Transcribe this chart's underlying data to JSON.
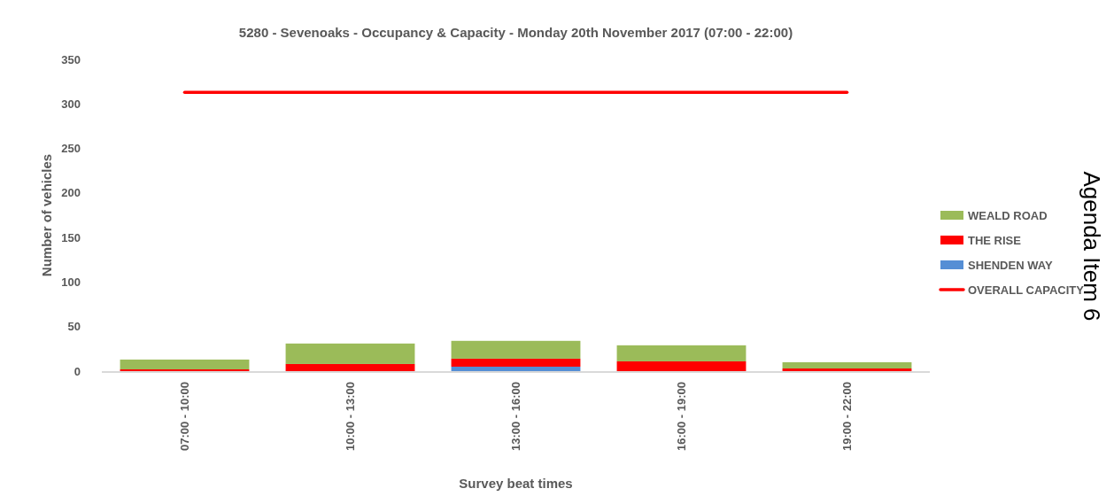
{
  "chart_data": {
    "type": "bar",
    "title": "5280 - Sevenoaks - Occupancy & Capacity - Monday 20th November 2017 (07:00 - 22:00)",
    "xlabel": "Survey beat times",
    "ylabel": "Number of vehicles",
    "categories": [
      "07:00 - 10:00",
      "10:00 - 13:00",
      "13:00 - 16:00",
      "16:00 - 19:00",
      "19:00 - 22:00"
    ],
    "stacked": true,
    "series": [
      {
        "name": "SHENDEN WAY",
        "color": "#558ed5",
        "values": [
          0,
          0,
          5,
          0,
          0
        ]
      },
      {
        "name": "THE RISE",
        "color": "#ff0000",
        "values": [
          2,
          8,
          9,
          11,
          3
        ]
      },
      {
        "name": "WEALD ROAD",
        "color": "#9bbb59",
        "values": [
          11,
          23,
          20,
          18,
          7
        ]
      },
      {
        "name": "OVERALL CAPACITY",
        "type": "line",
        "color": "#ff0000",
        "values": [
          313,
          313,
          313,
          313,
          313
        ]
      }
    ],
    "ylim": [
      0,
      350
    ],
    "yticks": [
      0,
      50,
      100,
      150,
      200,
      250,
      300,
      350
    ],
    "grid": false,
    "legend": "right",
    "marker": "none",
    "line_style": "solid",
    "annotations": [
      "Agenda Item 6"
    ]
  }
}
